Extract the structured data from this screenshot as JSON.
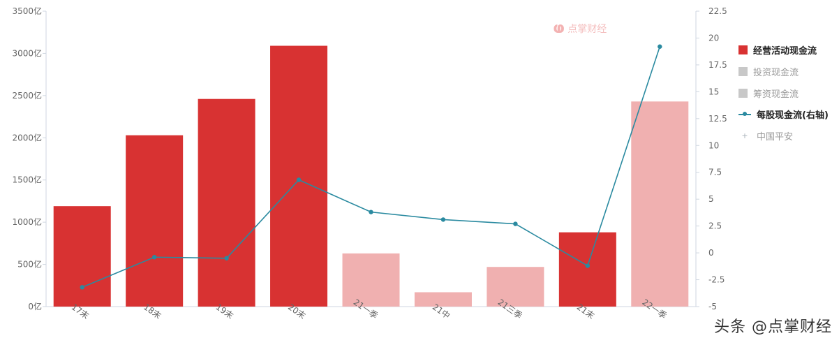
{
  "chart_data": {
    "type": "bar",
    "categories": [
      "17末",
      "18末",
      "19末",
      "20末",
      "21一季",
      "21中",
      "21三季",
      "21末",
      "22一季"
    ],
    "series": [
      {
        "name": "经营活动现金流",
        "type": "bar",
        "axis": "left",
        "values": [
          1190,
          2030,
          2460,
          3090,
          630,
          170,
          470,
          880,
          2430
        ],
        "colors": [
          "#d83232",
          "#d83232",
          "#d83232",
          "#d83232",
          "#f0b0b0",
          "#f0b0b0",
          "#f0b0b0",
          "#d83232",
          "#f0b0b0"
        ]
      },
      {
        "name": "每股现金流(右轴)",
        "type": "line",
        "axis": "right",
        "values": [
          -3.2,
          -0.4,
          -0.5,
          6.8,
          3.8,
          3.1,
          2.7,
          -1.2,
          19.2
        ]
      }
    ],
    "yleft": {
      "ticks": [
        0,
        500,
        1000,
        1500,
        2000,
        2500,
        3000,
        3500
      ],
      "tick_labels": [
        "0亿",
        "500亿",
        "1000亿",
        "1500亿",
        "2000亿",
        "2500亿",
        "3000亿",
        "3500亿"
      ],
      "ylim": [
        0,
        3500
      ]
    },
    "yright": {
      "ticks": [
        -5,
        -2.5,
        0,
        2.5,
        5,
        7.5,
        10,
        12.5,
        15,
        17.5,
        20,
        22.5
      ],
      "tick_labels": [
        "-5",
        "-2.5",
        "0",
        "2.5",
        "5",
        "7.5",
        "10",
        "12.5",
        "15",
        "17.5",
        "20",
        "22.5"
      ],
      "ylim": [
        -5,
        22.5
      ]
    },
    "legend": {
      "placement": "right",
      "items": [
        {
          "label": "经营活动现金流",
          "kind": "bar",
          "color": "#d83232",
          "active": true
        },
        {
          "label": "投资现金流",
          "kind": "bar",
          "color": "#c8c8c8",
          "active": false
        },
        {
          "label": "筹资现金流",
          "kind": "bar",
          "color": "#c8c8c8",
          "active": false
        },
        {
          "label": "每股现金流(右轴)",
          "kind": "line",
          "color": "#2a8aa0",
          "active": true
        },
        {
          "label": "中国平安",
          "kind": "marker",
          "color": "#aab3bb",
          "active": false
        }
      ]
    },
    "grid": false,
    "colors": {
      "bar_full": "#d83232",
      "bar_light": "#f0b0b0",
      "line": "#2a8aa0",
      "axis": "#cfd6e0",
      "tick_text": "#666666"
    }
  },
  "watermark": {
    "logo_text": "点掌财经",
    "footer": "头条 @点掌财经"
  }
}
